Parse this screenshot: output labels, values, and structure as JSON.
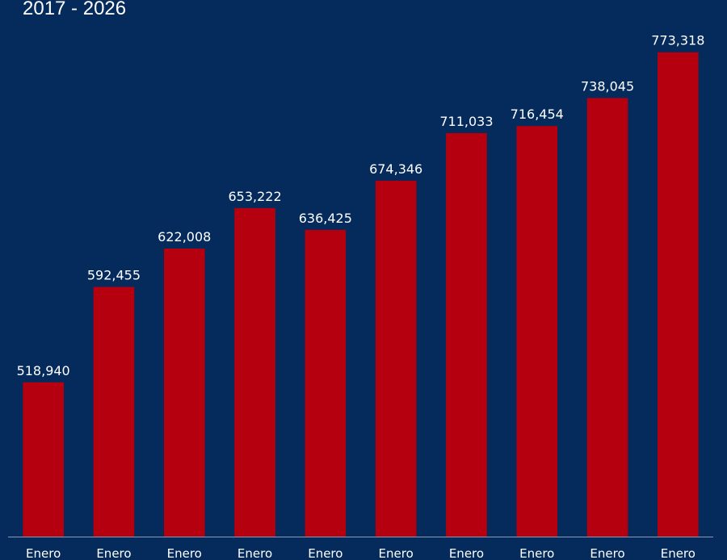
{
  "chart_data": {
    "type": "bar",
    "title": "2017 - 2026",
    "categories": [
      "Enero",
      "Enero",
      "Enero",
      "Enero",
      "Enero",
      "Enero",
      "Enero",
      "Enero",
      "Enero",
      "Enero"
    ],
    "values": [
      518940,
      592455,
      622008,
      653222,
      636425,
      674346,
      711033,
      716454,
      738045,
      773318
    ],
    "value_labels": [
      "518,940",
      "592,455",
      "622,008",
      "653,222",
      "636,425",
      "674,346",
      "711,033",
      "716,454",
      "738,045",
      "773,318"
    ],
    "color": "#b5000f",
    "ylim": [
      400000,
      780000
    ]
  }
}
